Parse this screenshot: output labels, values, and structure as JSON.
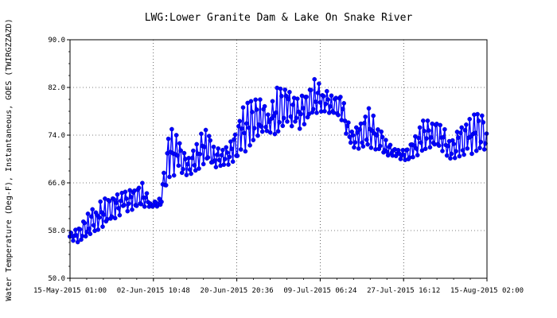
{
  "chart_data": {
    "type": "line",
    "title": "LWG:Lower Granite Dam & Lake On Snake River",
    "ylabel": "Water Temperature (Deg-F), Instantaneous, GOES (TWIRGZZAZD)",
    "xlabel": "",
    "ylim": [
      50.0,
      90.0
    ],
    "y_ticks": [
      "50.0",
      "58.0",
      "66.0",
      "74.0",
      "82.0",
      "90.0"
    ],
    "x_range": [
      "2015-05-15 01:00",
      "2015-08-15 02:00"
    ],
    "x_ticks": [
      "15-May-2015 01:00",
      "02-Jun-2015 10:48",
      "20-Jun-2015 20:36",
      "09-Jul-2015 06:24",
      "27-Jul-2015 16:12",
      "15-Aug-2015 02:00"
    ],
    "grid": true,
    "marker": "circle",
    "color": "#0000ff",
    "series": [
      {
        "x": [
          "2015-05-15",
          "2015-05-17",
          "2015-05-19",
          "2015-05-21",
          "2015-05-23",
          "2015-05-25",
          "2015-05-27",
          "2015-05-29",
          "2015-05-31",
          "2015-06-02",
          "2015-06-04",
          "2015-06-06",
          "2015-06-08",
          "2015-06-10",
          "2015-06-12",
          "2015-06-14",
          "2015-06-16",
          "2015-06-18",
          "2015-06-20",
          "2015-06-22",
          "2015-06-24",
          "2015-06-26",
          "2015-06-28",
          "2015-06-30",
          "2015-07-02",
          "2015-07-04",
          "2015-07-06",
          "2015-07-08",
          "2015-07-10",
          "2015-07-12",
          "2015-07-14",
          "2015-07-16",
          "2015-07-18",
          "2015-07-20",
          "2015-07-22",
          "2015-07-24",
          "2015-07-26",
          "2015-07-28",
          "2015-07-30",
          "2015-08-01",
          "2015-08-03",
          "2015-08-05",
          "2015-08-07",
          "2015-08-09",
          "2015-08-11",
          "2015-08-13",
          "2015-08-15"
        ],
        "min": [
          56.5,
          56.0,
          57.0,
          58.0,
          59.0,
          60.0,
          61.0,
          61.5,
          62.0,
          62.0,
          62.0,
          67.0,
          67.5,
          67.0,
          68.0,
          69.5,
          68.5,
          69.0,
          69.0,
          70.5,
          72.5,
          74.0,
          74.5,
          74.0,
          76.0,
          74.5,
          76.0,
          77.5,
          78.0,
          77.5,
          76.5,
          72.0,
          71.5,
          72.0,
          71.5,
          70.5,
          70.5,
          69.5,
          70.0,
          71.5,
          72.0,
          71.5,
          70.0,
          70.0,
          70.5,
          71.5,
          71.0
        ],
        "max": [
          57.5,
          58.5,
          61.0,
          62.5,
          63.5,
          64.0,
          64.5,
          65.0,
          66.0,
          62.5,
          63.5,
          75.5,
          73.5,
          70.0,
          72.5,
          76.0,
          72.0,
          71.5,
          73.5,
          78.5,
          80.0,
          80.5,
          78.0,
          82.5,
          82.0,
          80.0,
          81.0,
          83.5,
          82.0,
          80.5,
          81.0,
          74.5,
          76.0,
          78.5,
          76.0,
          73.0,
          71.5,
          71.5,
          73.5,
          76.5,
          76.5,
          76.5,
          72.5,
          75.5,
          76.5,
          78.0,
          77.5
        ]
      }
    ]
  }
}
